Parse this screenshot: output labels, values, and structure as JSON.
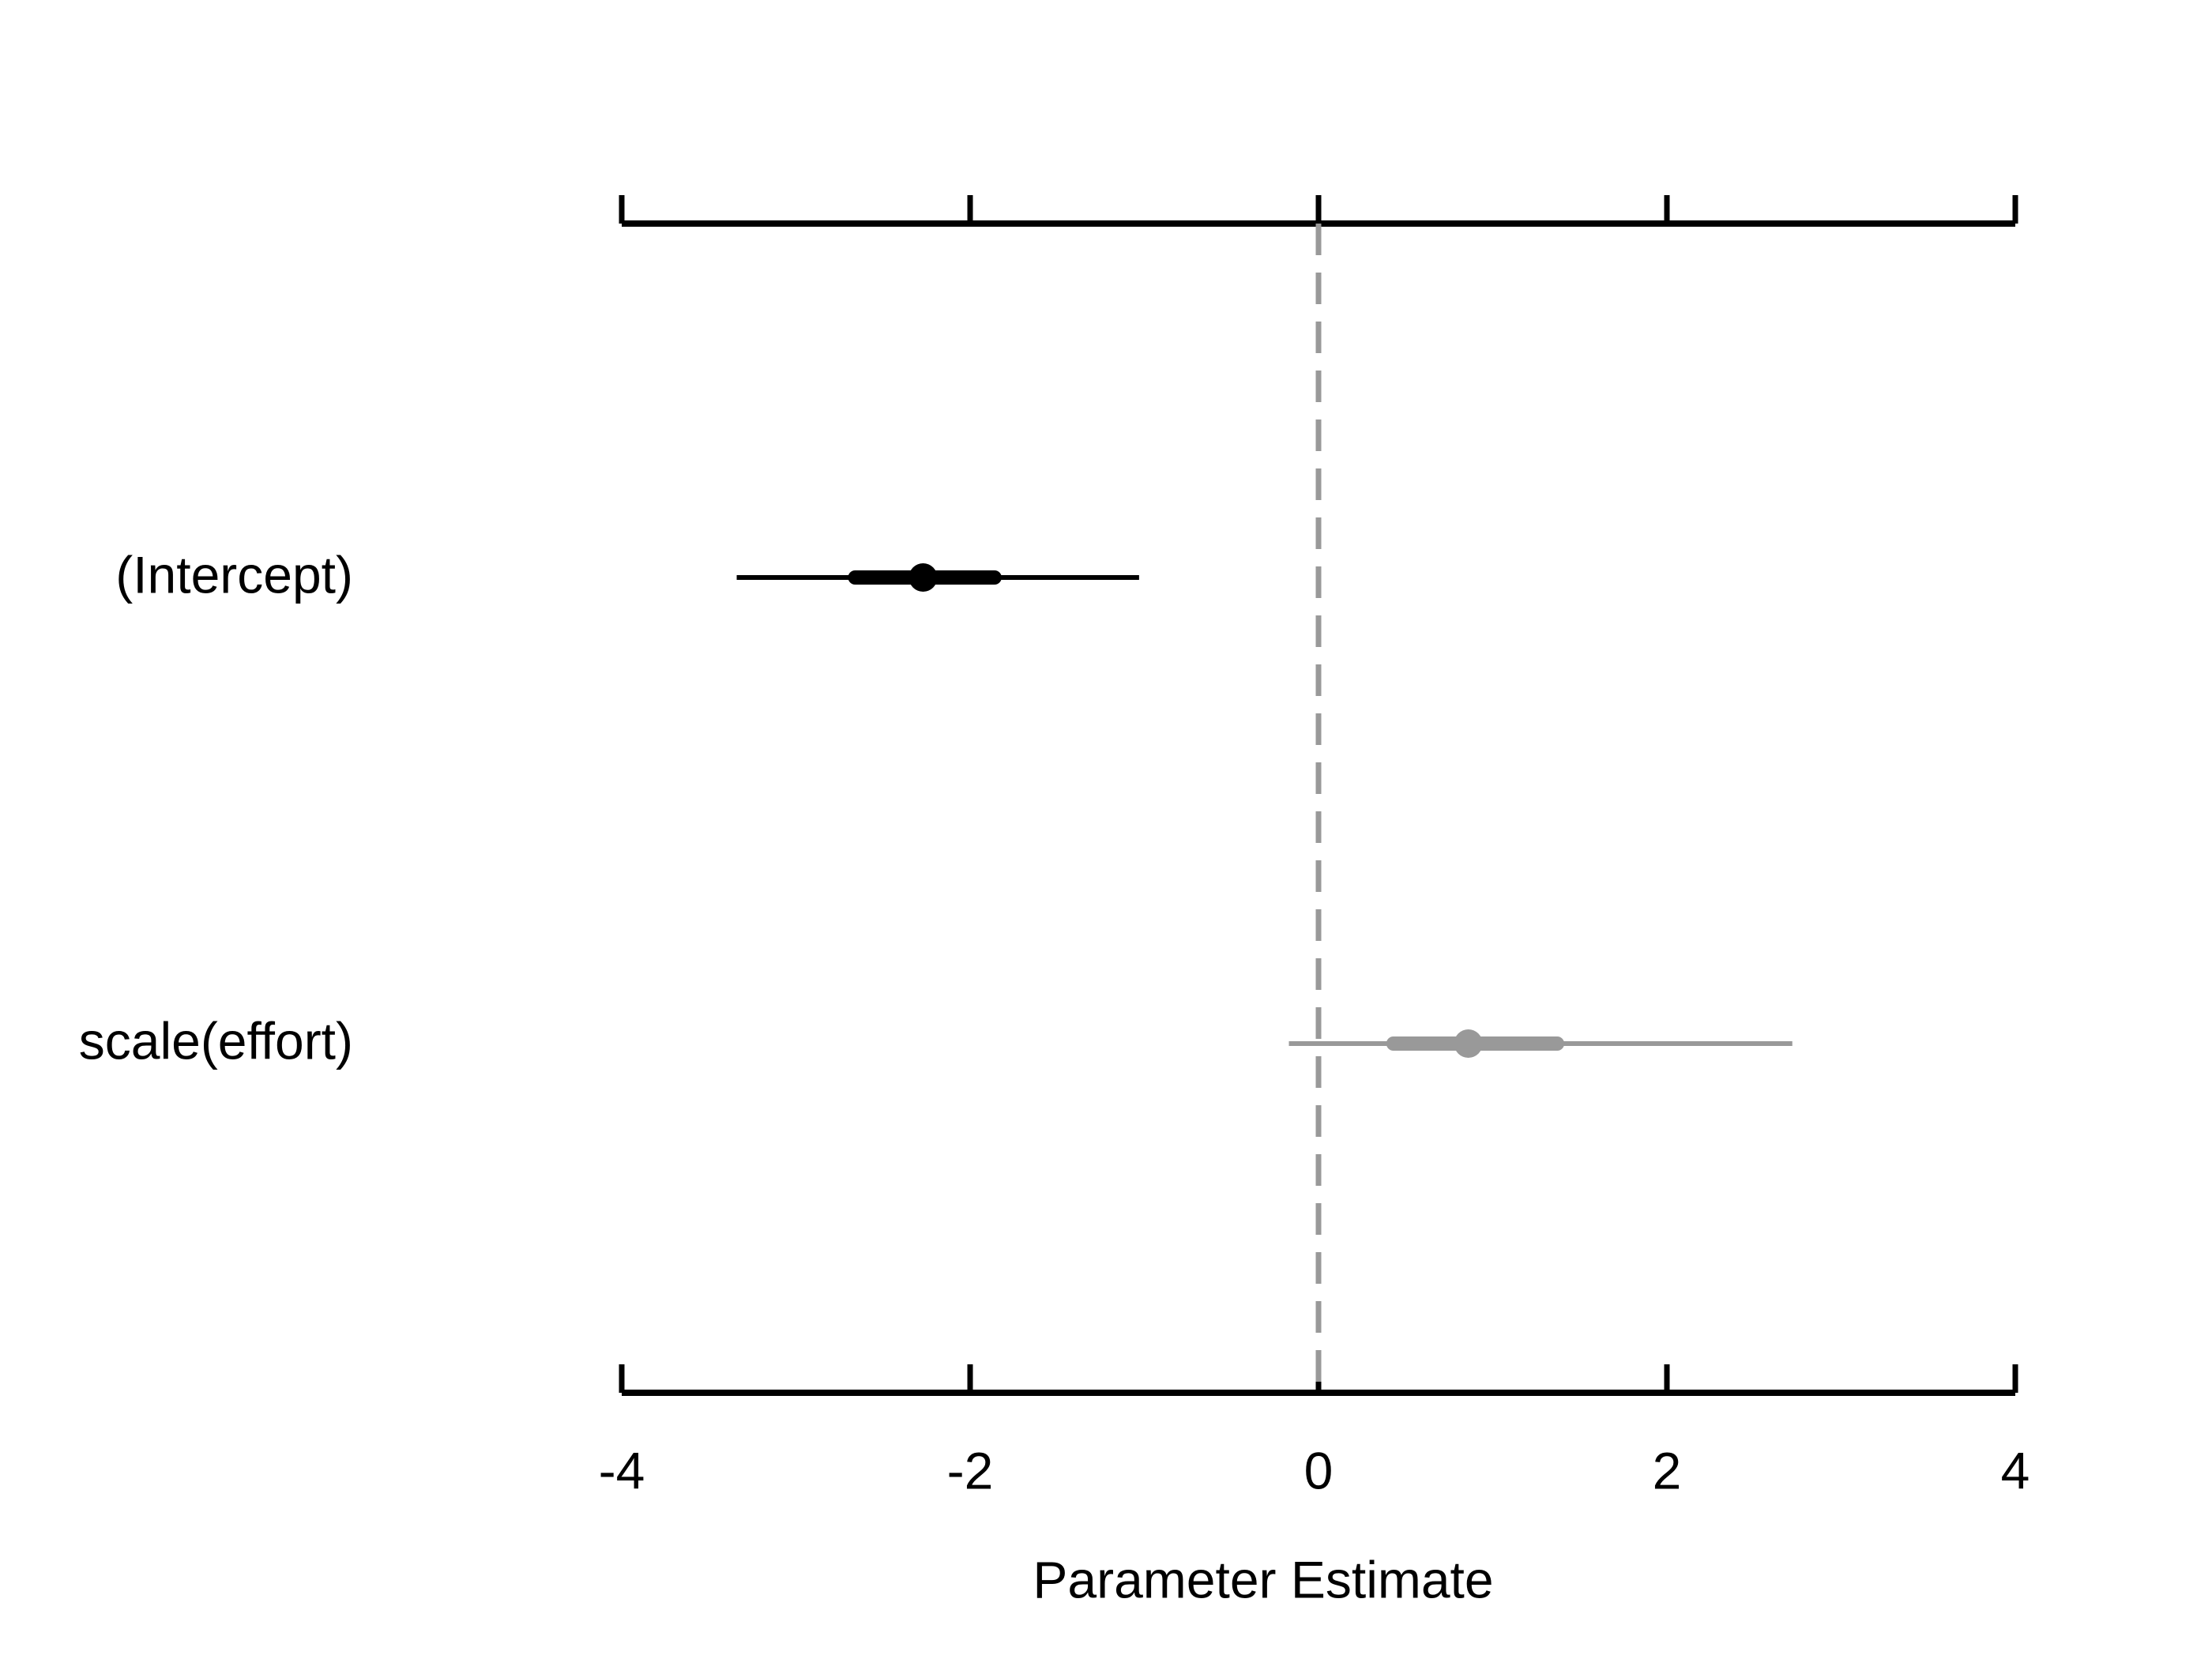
{
  "chart_data": {
    "type": "forest",
    "xlabel": "Parameter Estimate",
    "categories": [
      "(Intercept)",
      "scale(effort)"
    ],
    "values": [
      -2.27,
      0.86
    ],
    "inner_low": [
      -2.66,
      0.43
    ],
    "inner_high": [
      -1.86,
      1.37
    ],
    "outer_low": [
      -3.34,
      -0.17
    ],
    "outer_high": [
      -1.03,
      2.72
    ],
    "colors": [
      "#000000",
      "#999999"
    ],
    "reference_line": 0,
    "xlim": [
      -4,
      4
    ],
    "xticks": [
      -4,
      -2,
      0,
      2,
      4
    ]
  }
}
